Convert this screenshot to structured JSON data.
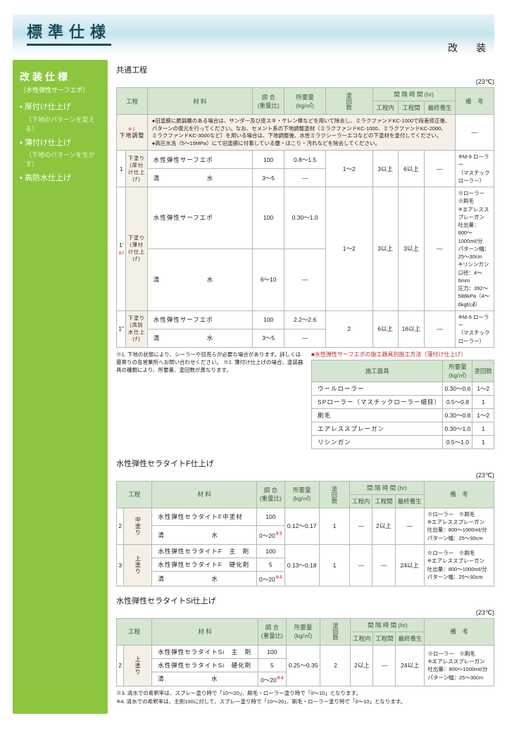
{
  "header": {
    "title": "標準仕様",
    "topRight": "改　装"
  },
  "sidebar": {
    "title": "改装仕様",
    "subtitle": "（水性弾性サーフエポ）",
    "items": [
      {
        "label": "厚付け仕上げ",
        "note": "（下地のパターンを変える）"
      },
      {
        "label": "薄付け仕上げ",
        "note": "（下地のパターンを生かす）"
      },
      {
        "label": "高防水仕上げ",
        "note": ""
      }
    ]
  },
  "section1": {
    "title": "共通工程",
    "temp": "(23℃)",
    "headers": {
      "koutei": "工程",
      "zairyo": "材 料",
      "chogo": "調 合\n(重量比)",
      "shoyo": "所要量\n(kg/㎡)",
      "kaisu": "塗回数",
      "kankaku": "間 隔 時 間 (hr)",
      "k1": "工程内",
      "k2": "工程間",
      "k3": "最終養生",
      "biko": "備　考"
    },
    "prep": {
      "label": "下地調整",
      "text": "●旧塗膜に脆弱層のある場合は、サンダー及び皮スキ・ケレン棒などを用いて除去し、ミラクファンドKC-1000で段差修正後、パターンの復元を行ってください。なお、セメント系の下地調整塗材（ミラクファンドKC-1000、ミラクファンドKC-2000、ミラクファンドKC-3000など）を用いる場合は、下地調整後、水性ミラクシーラーエコなどの下塗材を塗付してください。\n●高圧水洗（5〜15MPa）にて旧塗膜に付着している塵・ほこり・汚れなどを除去してください。"
    },
    "rows": [
      {
        "idx": "1",
        "sub": "下塗り(厚付け仕上げ)",
        "m1": "水性弾性サーフエポ",
        "c1": "100",
        "s1": "0.8〜1.5",
        "m2": "清　　　　　　　水",
        "c2": "3〜5",
        "s2": "—",
        "kaisu": "1〜2",
        "k1": "3以上",
        "k2": "6以上",
        "k3": "—",
        "biko": "※M-9 ローラー\n（マスチックローラー）"
      },
      {
        "idx": "1'",
        "sub": "下塗り(薄付け仕上げ)",
        "m1": "水性弾性サーフエポ",
        "c1": "100",
        "s1": "0.30〜1.0",
        "m2": "清　　　　　　　水",
        "c2": "6〜10",
        "s2": "—",
        "kaisu": "1〜2",
        "k1": "3以上",
        "k2": "3以上",
        "k3": "—",
        "biko": "※ローラー　※刷毛\n※エアレススプレーガン\n吐出量：800〜1000mℓ/分\nパターン幅：25〜30cm\n※リシンガン\n口径：4〜6mm\n圧力：392〜588kPa（4〜6kgf/㎠）"
      },
      {
        "idx": "1''",
        "sub": "下塗り(高防水仕上げ)",
        "m1": "水性弾性サーフエポ",
        "c1": "100",
        "s1": "2.2〜2.6",
        "m2": "清　　　　　　　水",
        "c2": "3〜5",
        "s2": "—",
        "kaisu": "2",
        "k1": "6以上",
        "k2": "16以上",
        "k3": "—",
        "biko": "※M-9 ローラー\n（マスチックローラー）"
      }
    ],
    "footnote": "※1. 下地の状態により、シーラーや目荒らが必要な場合があります。詳しくは最寄りの各営業所へお問い合わせください。\n※2. 薄付け仕上げの場合、塗装器具の種類により、所要量、塗回数が異なります。"
  },
  "subtable": {
    "title": "■水性弾性サーフエポの施工器具別施工方法（薄付け仕上げ）",
    "h1": "施工器具",
    "h2": "所要量\n(kg/㎡)",
    "h3": "塗回数",
    "rows": [
      {
        "a": "ウールローラー",
        "b": "0.30〜0.6",
        "c": "1〜2"
      },
      {
        "a": "SPローラー（マスチックローラー細目）",
        "b": "0.5〜0.8",
        "c": "1"
      },
      {
        "a": "刷毛",
        "b": "0.30〜0.8",
        "c": "1〜2"
      },
      {
        "a": "エアレススプレーガン",
        "b": "0.30〜1.0",
        "c": "1"
      },
      {
        "a": "リシンガン",
        "b": "0.5〜1.0",
        "c": "1"
      }
    ]
  },
  "section2": {
    "title": "水性弾性セラタイトF仕上げ",
    "temp": "(23℃)",
    "rows": [
      {
        "idx": "2",
        "sub": "中塗り",
        "m1": "水性弾性セラタイトF中塗材",
        "c1": "100",
        "s1": "0.12〜0.17",
        "m2": "清　　　　　　　水",
        "c2": "0〜20",
        "s2": "",
        "kaisu": "1",
        "k1": "—",
        "k2": "2以上",
        "k3": "—",
        "biko": "※ローラー　※刷毛\n※エアレススプレーガン\n吐出量：800〜1000mℓ/分\nパターン幅：25〜30cm",
        "c2note": "※3"
      },
      {
        "idx": "3",
        "sub": "上塗り",
        "m1": "水性弾性セラタイトF　主　剤",
        "c1": "100",
        "m1b": "水性弾性セラタイトF　硬化剤",
        "c1b": "5",
        "s1": "0.13〜0.18",
        "m2": "清　　　　　　　水",
        "c2": "0〜20",
        "s2": "",
        "kaisu": "1",
        "k1": "—",
        "k2": "—",
        "k3": "24以上",
        "biko": "※ローラー　※刷毛\n※エアレススプレーガン\n吐出量：800〜1000mℓ/分\nパターン幅：25〜30cm",
        "c2note": "※4"
      }
    ]
  },
  "section3": {
    "title": "水性弾性セラタイトSi仕上げ",
    "temp": "(23℃)",
    "rows": [
      {
        "idx": "2",
        "sub": "上塗り",
        "m1": "水性弾性セラタイトSi　主　剤",
        "c1": "100",
        "m1b": "水性弾性セラタイトSi　硬化剤",
        "c1b": "5",
        "s1": "0.25〜0.35",
        "m2": "清　　　　　　　水",
        "c2": "0〜20",
        "s2": "",
        "kaisu": "2",
        "k1": "2以上",
        "k2": "—",
        "k3": "24以上",
        "biko": "※ローラー　※刷毛\n※エアレススプレーガン\n吐出量：800〜1000mℓ/分\nパターン幅：25〜30cm",
        "c2note": "※4"
      }
    ],
    "footnote": "※3. 清水での希釈率は、スプレー塗り時で「10〜20」、刷毛・ローラー塗り時で「0〜10」となります。\n※4. 清水での希釈率は、主剤100に対して、スプレー塗り時で「10〜20」、刷毛・ローラー塗り時で「0〜10」となります。"
  }
}
